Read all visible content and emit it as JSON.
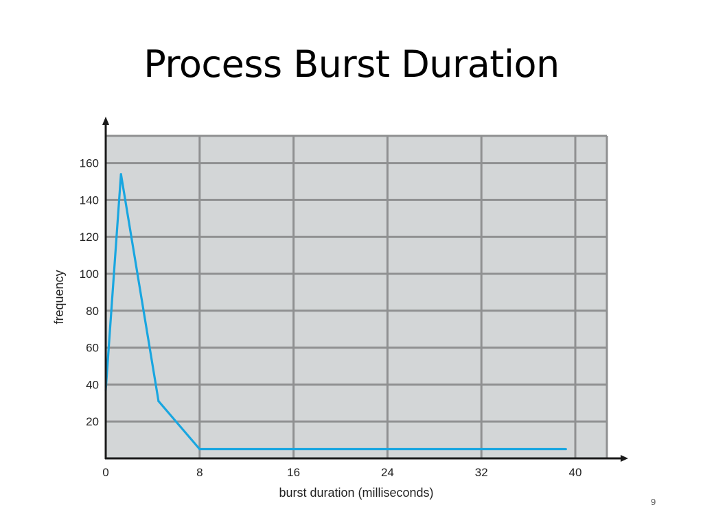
{
  "slide": {
    "title": "Process Burst Duration",
    "page_number": "9"
  },
  "colors": {
    "plot_background": "#d3d6d7",
    "grid": "#8f9091",
    "line": "#19a6e0",
    "axis": "#1a1a1a"
  },
  "chart_data": {
    "type": "line",
    "title": "",
    "xlabel": "burst duration (milliseconds)",
    "ylabel": "frequency",
    "xlim": [
      0,
      43
    ],
    "ylim": [
      0,
      175
    ],
    "x_ticks": [
      0,
      8,
      16,
      24,
      32,
      40
    ],
    "y_ticks": [
      20,
      40,
      60,
      80,
      100,
      120,
      140,
      160
    ],
    "grid": true,
    "series": [
      {
        "x": [
          0,
          1.3,
          4.5,
          8,
          39.2
        ],
        "y": [
          37,
          154,
          31,
          5,
          5
        ]
      }
    ]
  }
}
